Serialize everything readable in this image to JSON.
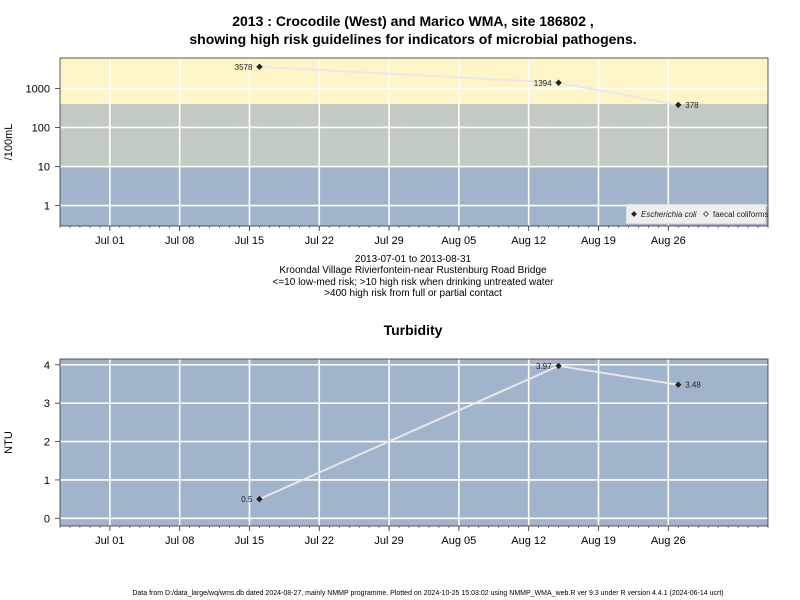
{
  "footer": "Data from D:/data_large/wq/wms.db dated 2024-08-27, mainly NMMP programme. Plotted on 2024-10-25 15:03:02 using NMMP_WMA_web.R ver 9.3 under R version 4.4.1 (2024-06-14 ucrt)",
  "chart_data": [
    {
      "type": "scatter",
      "title": "2013 : Crocodile (West) and Marico WMA, site 186802 ,",
      "subtitle": "showing high risk guidelines for indicators of microbial pathogens.",
      "ylabel": "/100mL",
      "xlabel": "",
      "y_scale": "log",
      "ylim": [
        0.3,
        6000
      ],
      "x_range": [
        "2013-06-26",
        "2013-09-05"
      ],
      "y_ticks": [
        1,
        10,
        100,
        1000
      ],
      "y_tick_labels": [
        "1",
        "10",
        "100",
        "1000"
      ],
      "x_ticks": [
        "2013-07-01",
        "2013-07-08",
        "2013-07-15",
        "2013-07-22",
        "2013-07-29",
        "2013-08-05",
        "2013-08-12",
        "2013-08-19",
        "2013-08-26"
      ],
      "x_tick_labels": [
        "Jul 01",
        "Jul 08",
        "Jul 15",
        "Jul 22",
        "Jul 29",
        "Aug 05",
        "Aug 12",
        "Aug 19",
        "Aug 26"
      ],
      "bands": [
        {
          "from": 0.3,
          "to": 10,
          "color": "#a2b3cc"
        },
        {
          "from": 10,
          "to": 400,
          "color": "#c2cbc2"
        },
        {
          "from": 400,
          "to": 6000,
          "color": "#fdf5c8"
        }
      ],
      "series": [
        {
          "name": "Escherichia coli",
          "x": [
            "2013-07-16",
            "2013-08-15",
            "2013-08-27"
          ],
          "y": [
            3578,
            1394,
            378
          ],
          "labels": [
            "3578",
            "1394",
            "378"
          ],
          "label_side": [
            "left",
            "left",
            "right"
          ],
          "color": "#222222"
        }
      ],
      "legend": {
        "position": "bottom-right",
        "entries": [
          {
            "name": "Escherichia coli",
            "marker": "filled-diamond",
            "italic": true
          },
          {
            "name": "faecal coliforms",
            "marker": "open-diamond",
            "italic": false
          }
        ]
      },
      "grid": true,
      "notes": [
        "2013-07-01 to 2013-08-31",
        "Kroondal Village Rivierfontein-near Rustenburg Road Bridge",
        "<=10 low-med risk; >10 high risk when drinking untreated water",
        ">400 high risk from full or partial contact"
      ]
    },
    {
      "type": "line",
      "title": "Turbidity",
      "ylabel": "NTU",
      "xlabel": "",
      "ylim": [
        -0.2,
        4.15
      ],
      "x_range": [
        "2013-06-26",
        "2013-09-05"
      ],
      "y_ticks": [
        0,
        1,
        2,
        3,
        4
      ],
      "y_tick_labels": [
        "0",
        "1",
        "2",
        "3",
        "4"
      ],
      "x_ticks": [
        "2013-07-01",
        "2013-07-08",
        "2013-07-15",
        "2013-07-22",
        "2013-07-29",
        "2013-08-05",
        "2013-08-12",
        "2013-08-19",
        "2013-08-26"
      ],
      "x_tick_labels": [
        "Jul 01",
        "Jul 08",
        "Jul 15",
        "Jul 22",
        "Jul 29",
        "Aug 05",
        "Aug 12",
        "Aug 19",
        "Aug 26"
      ],
      "background": "#a2b3cc",
      "series": [
        {
          "x": [
            "2013-07-16",
            "2013-08-15",
            "2013-08-27"
          ],
          "y": [
            0.5,
            3.97,
            3.48
          ],
          "labels": [
            "0.5",
            "3.97",
            "3.48"
          ],
          "label_side": [
            "left",
            "left",
            "right"
          ],
          "color": "#222222"
        }
      ],
      "grid": true
    }
  ]
}
